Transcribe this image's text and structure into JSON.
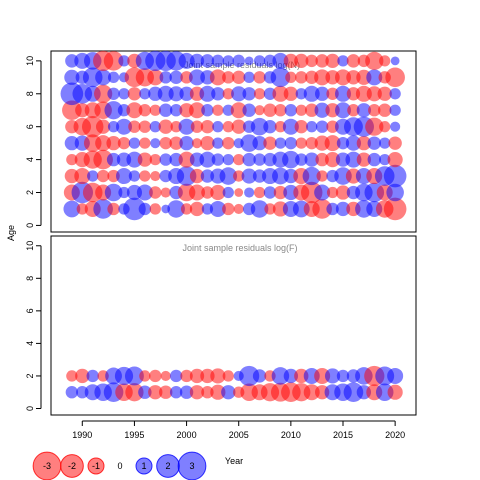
{
  "chart_data": [
    {
      "type": "scatter",
      "subtype": "bubble",
      "title": "Joint sample residuals log(N)",
      "xlabel": "",
      "ylabel": "Age",
      "xlim": [
        1987,
        2022
      ],
      "ylim": [
        -0.4,
        10.6
      ],
      "y_ticks": [
        "0",
        "2",
        "4",
        "6",
        "8",
        "10"
      ],
      "ages": [
        1,
        2,
        3,
        4,
        5,
        6,
        7,
        8,
        9,
        10
      ],
      "years": [
        1989,
        1990,
        1991,
        1992,
        1993,
        1994,
        1995,
        1996,
        1997,
        1998,
        1999,
        2000,
        2001,
        2002,
        2003,
        2004,
        2005,
        2006,
        2007,
        2008,
        2009,
        2010,
        2011,
        2012,
        2013,
        2014,
        2015,
        2016,
        2017,
        2018,
        2019,
        2020
      ],
      "residuals": [
        [
          1.1,
          -0.5,
          -1.0,
          1.5,
          -0.6,
          0.5,
          2.0,
          0.6,
          -0.5,
          0.3,
          1.2,
          -0.5,
          -0.8,
          0.5,
          1.0,
          -0.6,
          -0.4,
          0.6,
          1.2,
          -0.5,
          -0.9,
          1.0,
          1.1,
          -1.0,
          -1.5,
          0.6,
          0.8,
          -0.8,
          1.2,
          1.0,
          -1.2,
          -2.0
        ],
        [
          -1.0,
          1.8,
          -1.5,
          -1.0,
          1.2,
          0.5,
          0.9,
          1.0,
          -0.6,
          -0.4,
          0.7,
          -1.2,
          -1.0,
          -0.6,
          -0.9,
          0.5,
          -0.3,
          0.4,
          -0.5,
          0.6,
          -0.7,
          0.9,
          -1.0,
          -1.8,
          1.0,
          -0.5,
          -0.8,
          0.7,
          1.2,
          1.5,
          -1.0,
          1.2
        ],
        [
          -0.8,
          -1.0,
          0.5,
          -0.6,
          -0.6,
          1.0,
          0.5,
          -0.5,
          -0.4,
          0.6,
          1.0,
          1.5,
          -0.8,
          0.7,
          0.9,
          1.2,
          -0.5,
          0.9,
          0.7,
          1.0,
          1.1,
          0.8,
          -1.0,
          1.3,
          -0.5,
          0.6,
          1.2,
          -0.9,
          1.0,
          -1.0,
          1.5,
          2.0
        ],
        [
          -0.5,
          -0.9,
          -1.3,
          -1.5,
          0.7,
          0.8,
          1.0,
          -0.8,
          -0.5,
          0.6,
          0.7,
          -1.0,
          0.8,
          1.0,
          0.6,
          0.5,
          -0.5,
          0.7,
          0.6,
          0.7,
          1.0,
          1.2,
          0.6,
          0.8,
          -0.7,
          -0.9,
          0.8,
          1.0,
          -0.8,
          0.7,
          0.5,
          -0.9
        ],
        [
          0.8,
          0.9,
          -1.2,
          -1.0,
          -0.8,
          -0.6,
          0.5,
          -0.5,
          0.4,
          -0.6,
          -0.7,
          0.8,
          -0.4,
          -0.8,
          0.5,
          -0.6,
          0.4,
          1.2,
          0.8,
          -0.7,
          0.5,
          0.6,
          -0.5,
          -0.6,
          -0.9,
          -1.0,
          0.6,
          0.9,
          -0.8,
          0.7,
          0.5,
          -0.7
        ],
        [
          -0.7,
          -1.2,
          -1.8,
          -0.8,
          0.5,
          1.0,
          -0.6,
          -0.6,
          0.5,
          -0.8,
          -0.5,
          1.0,
          -0.6,
          -0.7,
          0.5,
          -0.5,
          -0.8,
          0.6,
          1.2,
          0.7,
          -0.5,
          1.0,
          -0.7,
          0.5,
          0.6,
          -0.6,
          1.0,
          1.4,
          1.6,
          -1.3,
          -0.5,
          0.4
        ],
        [
          -1.5,
          -0.8,
          -1.0,
          -1.2,
          1.3,
          0.6,
          -1.0,
          -0.6,
          -0.5,
          0.7,
          0.6,
          -0.8,
          -1.0,
          0.6,
          -0.5,
          0.5,
          -1.0,
          0.7,
          -0.4,
          -0.7,
          -0.6,
          0.6,
          -0.5,
          -0.7,
          0.9,
          -0.8,
          1.0,
          -0.6,
          0.8,
          -0.6,
          -0.7,
          0.5
        ],
        [
          2.0,
          1.5,
          1.0,
          -1.3,
          0.6,
          0.5,
          -0.7,
          0.5,
          0.8,
          1.0,
          0.9,
          0.8,
          -0.8,
          1.0,
          0.7,
          -0.5,
          0.9,
          0.7,
          -0.5,
          0.6,
          -1.0,
          -0.8,
          0.5,
          1.0,
          0.8,
          -0.6,
          1.0,
          -0.7,
          -1.0,
          -0.9,
          -0.8,
          0.5
        ],
        [
          0.9,
          0.7,
          1.5,
          1.0,
          0.5,
          0.4,
          -1.5,
          -1.3,
          -1.0,
          0.6,
          0.7,
          -0.6,
          1.0,
          0.8,
          -1.0,
          -0.6,
          -0.7,
          0.5,
          -0.6,
          0.6,
          1.5,
          -0.5,
          -0.6,
          -0.7,
          -1.0,
          -0.8,
          -1.0,
          -0.8,
          -0.9,
          1.0,
          -0.6,
          -1.5
        ],
        [
          0.7,
          1.0,
          1.2,
          -1.6,
          -1.5,
          0.5,
          -0.8,
          1.3,
          1.6,
          1.6,
          1.5,
          1.0,
          0.8,
          0.7,
          0.6,
          0.5,
          0.6,
          0.3,
          0.5,
          0.6,
          1.0,
          -0.8,
          -0.8,
          -0.6,
          -0.7,
          -0.8,
          0.5,
          -0.7,
          -0.6,
          -1.3,
          -0.5,
          0.3
        ]
      ]
    },
    {
      "type": "scatter",
      "subtype": "bubble",
      "title": "Joint sample residuals log(F)",
      "xlabel": "Year",
      "ylabel": "",
      "xlim": [
        1987,
        2022
      ],
      "ylim": [
        -0.4,
        10.6
      ],
      "x_ticks": [
        "1990",
        "1995",
        "2000",
        "2005",
        "2010",
        "2015",
        "2020"
      ],
      "y_ticks": [
        "0",
        "2",
        "4",
        "6",
        "8",
        "10"
      ],
      "ages": [
        1,
        2
      ],
      "years": [
        1989,
        1990,
        1991,
        1992,
        1993,
        1994,
        1995,
        1996,
        1997,
        1998,
        1999,
        2000,
        2001,
        2002,
        2003,
        2004,
        2005,
        2006,
        2007,
        2008,
        2009,
        2010,
        2011,
        2012,
        2013,
        2014,
        2015,
        2016,
        2017,
        2018,
        2019,
        2020
      ],
      "residuals": [
        [
          0.6,
          0.6,
          1.0,
          1.2,
          1.5,
          -1.2,
          -1.3,
          0.7,
          -0.8,
          -0.7,
          0.6,
          0.7,
          -0.8,
          -0.6,
          -0.9,
          0.8,
          -0.5,
          -1.2,
          -1.0,
          -1.3,
          -1.4,
          -1.5,
          -1.3,
          -1.0,
          -0.8,
          1.0,
          1.2,
          1.5,
          0.8,
          -1.0,
          1.2,
          -0.9
        ],
        [
          -0.5,
          -0.8,
          0.6,
          -0.5,
          1.1,
          1.3,
          1.4,
          -0.5,
          -0.6,
          -0.4,
          0.6,
          -0.6,
          -0.8,
          -0.8,
          -0.9,
          -0.5,
          0.4,
          1.6,
          0.7,
          -0.5,
          1.2,
          0.8,
          -0.8,
          1.0,
          -1.0,
          0.9,
          0.6,
          0.7,
          1.2,
          -1.6,
          1.4,
          1.0
        ]
      ]
    }
  ],
  "legend": {
    "items": [
      "-3",
      "-2",
      "-1",
      "0",
      "1",
      "2",
      "3"
    ],
    "values": [
      -3,
      -2,
      -1,
      0,
      1,
      2,
      3
    ],
    "label": "Year"
  },
  "colors": {
    "negative": "#ff0000",
    "positive": "#0000ff",
    "title": "#888888",
    "axis": "#000000"
  }
}
